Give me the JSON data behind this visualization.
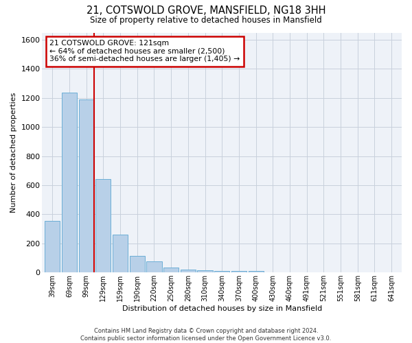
{
  "title": "21, COTSWOLD GROVE, MANSFIELD, NG18 3HH",
  "subtitle": "Size of property relative to detached houses in Mansfield",
  "xlabel": "Distribution of detached houses by size in Mansfield",
  "ylabel": "Number of detached properties",
  "categories": [
    "39sqm",
    "69sqm",
    "99sqm",
    "129sqm",
    "159sqm",
    "190sqm",
    "220sqm",
    "250sqm",
    "280sqm",
    "310sqm",
    "340sqm",
    "370sqm",
    "400sqm",
    "430sqm",
    "460sqm",
    "491sqm",
    "521sqm",
    "551sqm",
    "581sqm",
    "611sqm",
    "641sqm"
  ],
  "values": [
    355,
    1235,
    1190,
    645,
    260,
    115,
    75,
    35,
    22,
    15,
    12,
    12,
    10,
    0,
    0,
    0,
    0,
    0,
    0,
    0,
    0
  ],
  "bar_color": "#b8d0e8",
  "bar_edge_color": "#6baed6",
  "grid_color": "#c8d0dc",
  "vline_color": "#cc0000",
  "annotation_text": "21 COTSWOLD GROVE: 121sqm\n← 64% of detached houses are smaller (2,500)\n36% of semi-detached houses are larger (1,405) →",
  "annotation_box_color": "#ffffff",
  "annotation_box_edge_color": "#cc0000",
  "ylim": [
    0,
    1650
  ],
  "yticks": [
    0,
    200,
    400,
    600,
    800,
    1000,
    1200,
    1400,
    1600
  ],
  "footer": "Contains HM Land Registry data © Crown copyright and database right 2024.\nContains public sector information licensed under the Open Government Licence v3.0.",
  "bg_color": "#ffffff",
  "plot_bg_color": "#eef2f8"
}
